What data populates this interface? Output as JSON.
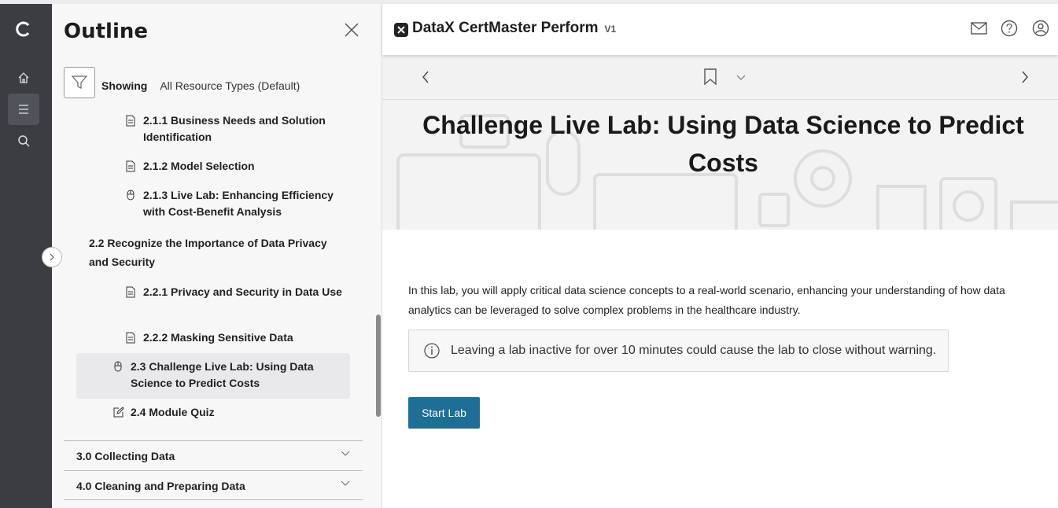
{
  "outline": {
    "title": "Outline",
    "showing_label": "Showing",
    "showing_value": "All Resource Types (Default)",
    "items": [
      {
        "label": "2.1.1 Business Needs and Solution Identification",
        "icon": "document-icon"
      },
      {
        "label": "2.1.2 Model Selection",
        "icon": "document-icon"
      },
      {
        "label": "2.1.3 Live Lab: Enhancing Efficiency with Cost-Benefit Analysis",
        "icon": "mouse-icon"
      },
      {
        "label": "2.2 Recognize the Importance of Data Privacy and Security"
      },
      {
        "label": "2.2.1 Privacy and Security in Data Use",
        "icon": "document-icon"
      },
      {
        "label": "2.2.2 Masking Sensitive Data",
        "icon": "document-icon"
      },
      {
        "label": "2.3 Challenge Live Lab: Using Data Science to Predict Costs",
        "icon": "mouse-icon",
        "selected": true
      },
      {
        "label": "2.4 Module Quiz",
        "icon": "edit-icon"
      }
    ],
    "sections": [
      {
        "label": "3.0 Collecting Data"
      },
      {
        "label": "4.0 Cleaning and Preparing Data"
      }
    ]
  },
  "header": {
    "brand": "DataX CertMaster Perform",
    "version": "V1"
  },
  "content": {
    "title": "Challenge Live Lab: Using Data Science to Predict Costs",
    "intro": "In this lab, you will apply critical data science concepts to a real-world scenario, enhancing your understanding of how data analytics can be leveraged to solve complex problems in the healthcare industry.",
    "note": "Leaving a lab inactive for over 10 minutes could cause the lab to close without warning.",
    "start_label": "Start Lab"
  },
  "colors": {
    "rail": "#3b3d42",
    "primary_button": "#1e6e96"
  }
}
